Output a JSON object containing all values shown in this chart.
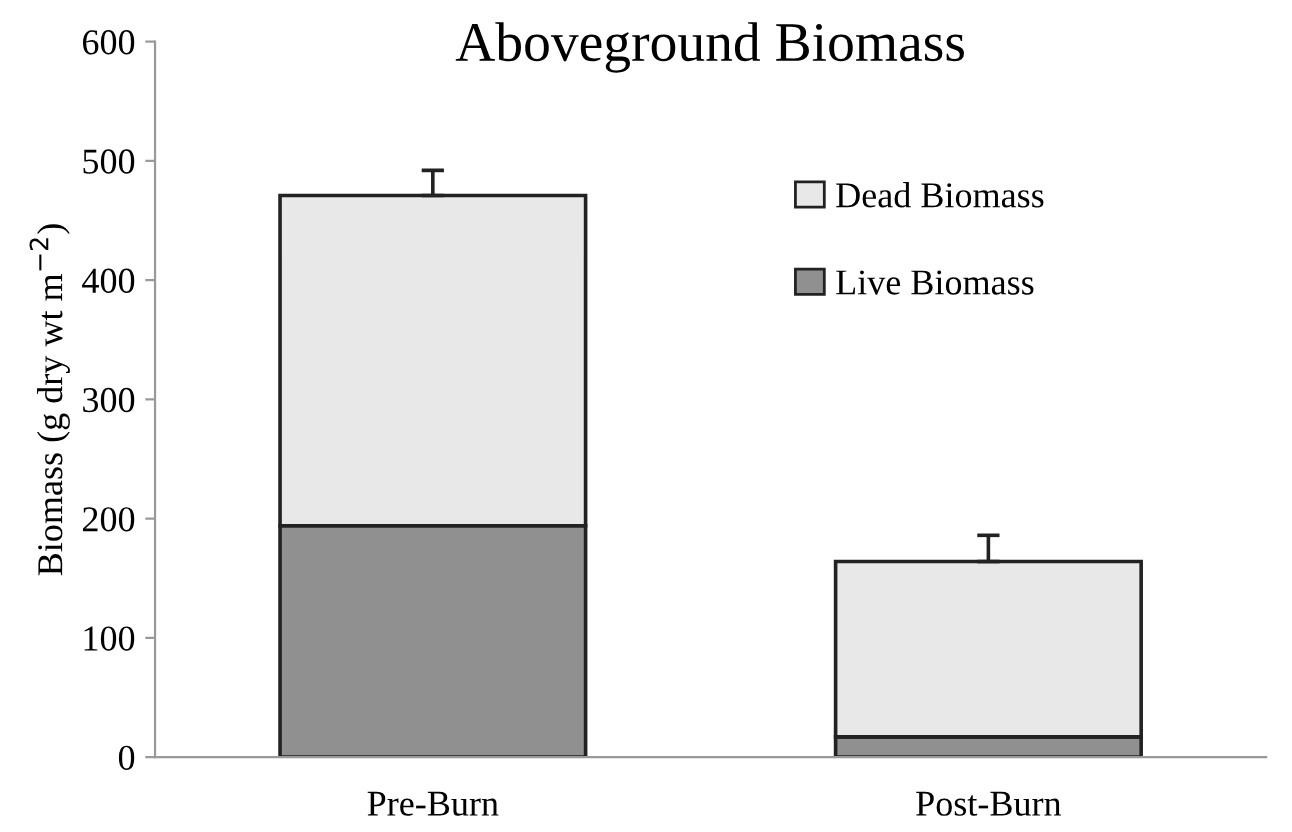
{
  "chart_data": {
    "type": "bar",
    "title": "Aboveground Biomass",
    "ylabel": "Biomass (g dry wt m$^{−2}$)",
    "categories": [
      "Pre-Burn",
      "Post-Burn"
    ],
    "stacked": true,
    "series": [
      {
        "name": "Live Biomass",
        "color": "#909090",
        "values": [
          194,
          17
        ]
      },
      {
        "name": "Dead Biomass",
        "color": "#e8e8e8",
        "values": [
          277,
          147
        ],
        "errors": [
          [
            471,
            492
          ],
          [
            164,
            186
          ]
        ]
      }
    ],
    "ylim": [
      0,
      600
    ],
    "yticks": [
      0,
      100,
      200,
      300,
      400,
      500,
      600
    ],
    "grid": false,
    "legend": "right"
  }
}
